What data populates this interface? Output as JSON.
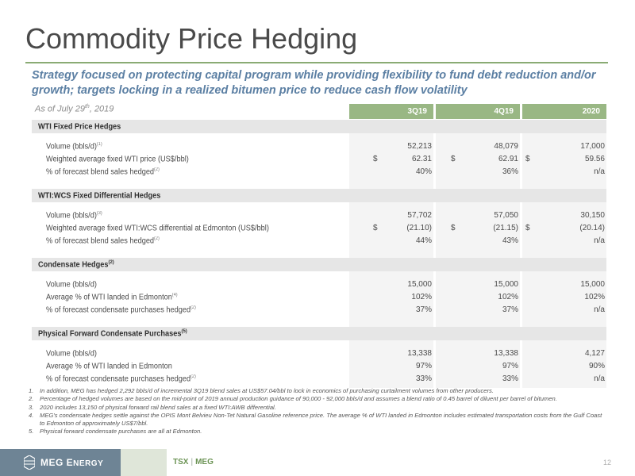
{
  "header": {
    "title": "Commodity Price Hedging",
    "subtitle": "Strategy focused on protecting capital program while providing flexibility to fund debt reduction and/or growth; targets locking in a realized bitumen price to reduce cash flow volatility"
  },
  "table": {
    "as_of_prefix": "As of July 29",
    "as_of_sup": "th",
    "as_of_suffix": ", 2019",
    "columns": [
      "3Q19",
      "4Q19",
      "2020"
    ],
    "sections": [
      {
        "label": "WTI Fixed Price Hedges",
        "label_sup": "",
        "rows": [
          {
            "label": "Volume (bbls/d)",
            "sup": "(1)",
            "values": [
              "52,213",
              "48,079",
              "17,000"
            ],
            "currency": [
              "",
              "",
              ""
            ]
          },
          {
            "label": "Weighted average fixed WTI price (US$/bbl)",
            "sup": "",
            "values": [
              "62.31",
              "62.91",
              "59.56"
            ],
            "currency": [
              "$",
              "$",
              "$"
            ]
          },
          {
            "label": "% of forecast blend sales hedged",
            "sup": "(2)",
            "values": [
              "40%",
              "36%",
              "n/a"
            ],
            "currency": [
              "",
              "",
              ""
            ]
          }
        ]
      },
      {
        "label": "WTI:WCS Fixed Differential Hedges",
        "label_sup": "",
        "rows": [
          {
            "label": "Volume (bbls/d)",
            "sup": "(3)",
            "values": [
              "57,702",
              "57,050",
              "30,150"
            ],
            "currency": [
              "",
              "",
              ""
            ]
          },
          {
            "label": "Weighted average fixed WTI:WCS differential at Edmonton (US$/bbl)",
            "sup": "",
            "values": [
              "(21.10)",
              "(21.15)",
              "(20.14)"
            ],
            "currency": [
              "$",
              "$",
              "$"
            ]
          },
          {
            "label": "% of forecast blend sales hedged",
            "sup": "(2)",
            "values": [
              "44%",
              "43%",
              "n/a"
            ],
            "currency": [
              "",
              "",
              ""
            ]
          }
        ]
      },
      {
        "label": "Condensate Hedges",
        "label_sup": "(2)",
        "rows": [
          {
            "label": "Volume (bbls/d)",
            "sup": "",
            "values": [
              "15,000",
              "15,000",
              "15,000"
            ],
            "currency": [
              "",
              "",
              ""
            ]
          },
          {
            "label": "Average % of WTI landed in Edmonton",
            "sup": "(4)",
            "values": [
              "102%",
              "102%",
              "102%"
            ],
            "currency": [
              "",
              "",
              ""
            ]
          },
          {
            "label": "% of forecast condensate purchases hedged",
            "sup": "(2)",
            "values": [
              "37%",
              "37%",
              "n/a"
            ],
            "currency": [
              "",
              "",
              ""
            ]
          }
        ]
      },
      {
        "label": "Physical Forward Condensate Purchases",
        "label_sup": "(5)",
        "rows": [
          {
            "label": "Volume (bbls/d)",
            "sup": "",
            "values": [
              "13,338",
              "13,338",
              "4,127"
            ],
            "currency": [
              "",
              "",
              ""
            ]
          },
          {
            "label": "Average % of WTI landed in Edmonton",
            "sup": "",
            "values": [
              "97%",
              "97%",
              "90%"
            ],
            "currency": [
              "",
              "",
              ""
            ]
          },
          {
            "label": "% of forecast condensate purchases hedged",
            "sup": "(2)",
            "values": [
              "33%",
              "33%",
              "n/a"
            ],
            "currency": [
              "",
              "",
              ""
            ]
          }
        ]
      }
    ]
  },
  "footnotes": [
    {
      "num": "1.",
      "text": "In addition, MEG has hedged 2,292 bbls/d of incremental 3Q19 blend sales at US$57.04/bbl to lock in economics of purchasing curtailment volumes from other producers."
    },
    {
      "num": "2.",
      "text": "Percentage of hedged volumes are based on the mid-point of 2019 annual production guidance of 90,000 - 92,000 bbls/d and assumes a blend ratio of 0.45 barrel of diluent per barrel of bitumen."
    },
    {
      "num": "3.",
      "text": "2020 includes 13,150 of physical forward rail blend sales at a fixed WTI:AWB differential."
    },
    {
      "num": "4.",
      "text": "MEG's condensate hedges settle against the OPIS Mont Belvieu Non-Tet Natural Gasoline reference price. The average % of WTI landed in Edmonton includes estimated transportation costs from the Gulf Coast to Edmonton of approximately US$7/bbl."
    },
    {
      "num": "5.",
      "text": "Physical forward condensate purchases are all at Edmonton."
    }
  ],
  "footer": {
    "logo_main": "MEG E",
    "logo_small": "NERGY",
    "ticker_exchange": "TSX",
    "ticker_separator": "|",
    "ticker_symbol": "MEG",
    "page_number": "12"
  },
  "colors": {
    "accent_green": "#99b784",
    "subtitle_blue": "#5b7fa3",
    "logo_slate": "#6e8495"
  },
  "icons": {
    "logo": "meg-hexagon-icon"
  }
}
